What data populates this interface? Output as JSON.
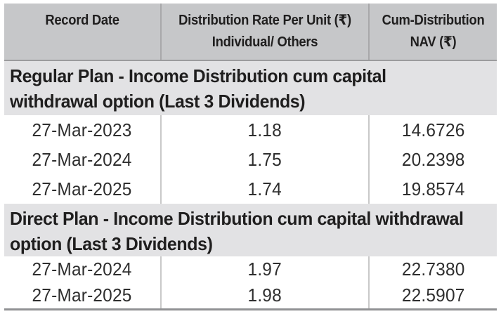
{
  "table": {
    "header": {
      "col1_line1": "Record Date",
      "col2_line1": "Distribution Rate Per Unit (₹)",
      "col2_line2": "Individual/ Others",
      "col3_line1": "Cum-Distribution",
      "col3_line2": "NAV (₹)"
    },
    "sections": [
      {
        "title": "Regular Plan - Income Distribution cum capital withdrawal option (Last 3 Dividends)",
        "rows": [
          {
            "record_date": "27-Mar-2023",
            "rate": "1.18",
            "nav": "14.6726"
          },
          {
            "record_date": "27-Mar-2024",
            "rate": "1.75",
            "nav": "20.2398"
          },
          {
            "record_date": "27-Mar-2025",
            "rate": "1.74",
            "nav": "19.8574"
          }
        ]
      },
      {
        "title": "Direct Plan - Income Distribution cum capital withdrawal option (Last 3 Dividends)",
        "rows": [
          {
            "record_date": "27-Mar-2024",
            "rate": "1.97",
            "nav": "22.7380"
          },
          {
            "record_date": "27-Mar-2025",
            "rate": "1.98",
            "nav": "22.5907"
          }
        ]
      }
    ],
    "colors": {
      "header_bg": "#c6c7c9",
      "section_bg": "#e2e2e4",
      "header_text": "#1f1e1e",
      "data_text": "#2e2e2e",
      "column_divider_header": "#a8a8aa",
      "column_divider_rows": "#c9c9c9",
      "header_bottom_border": "#9b9b9d",
      "table_bottom_border": "#909193"
    }
  }
}
